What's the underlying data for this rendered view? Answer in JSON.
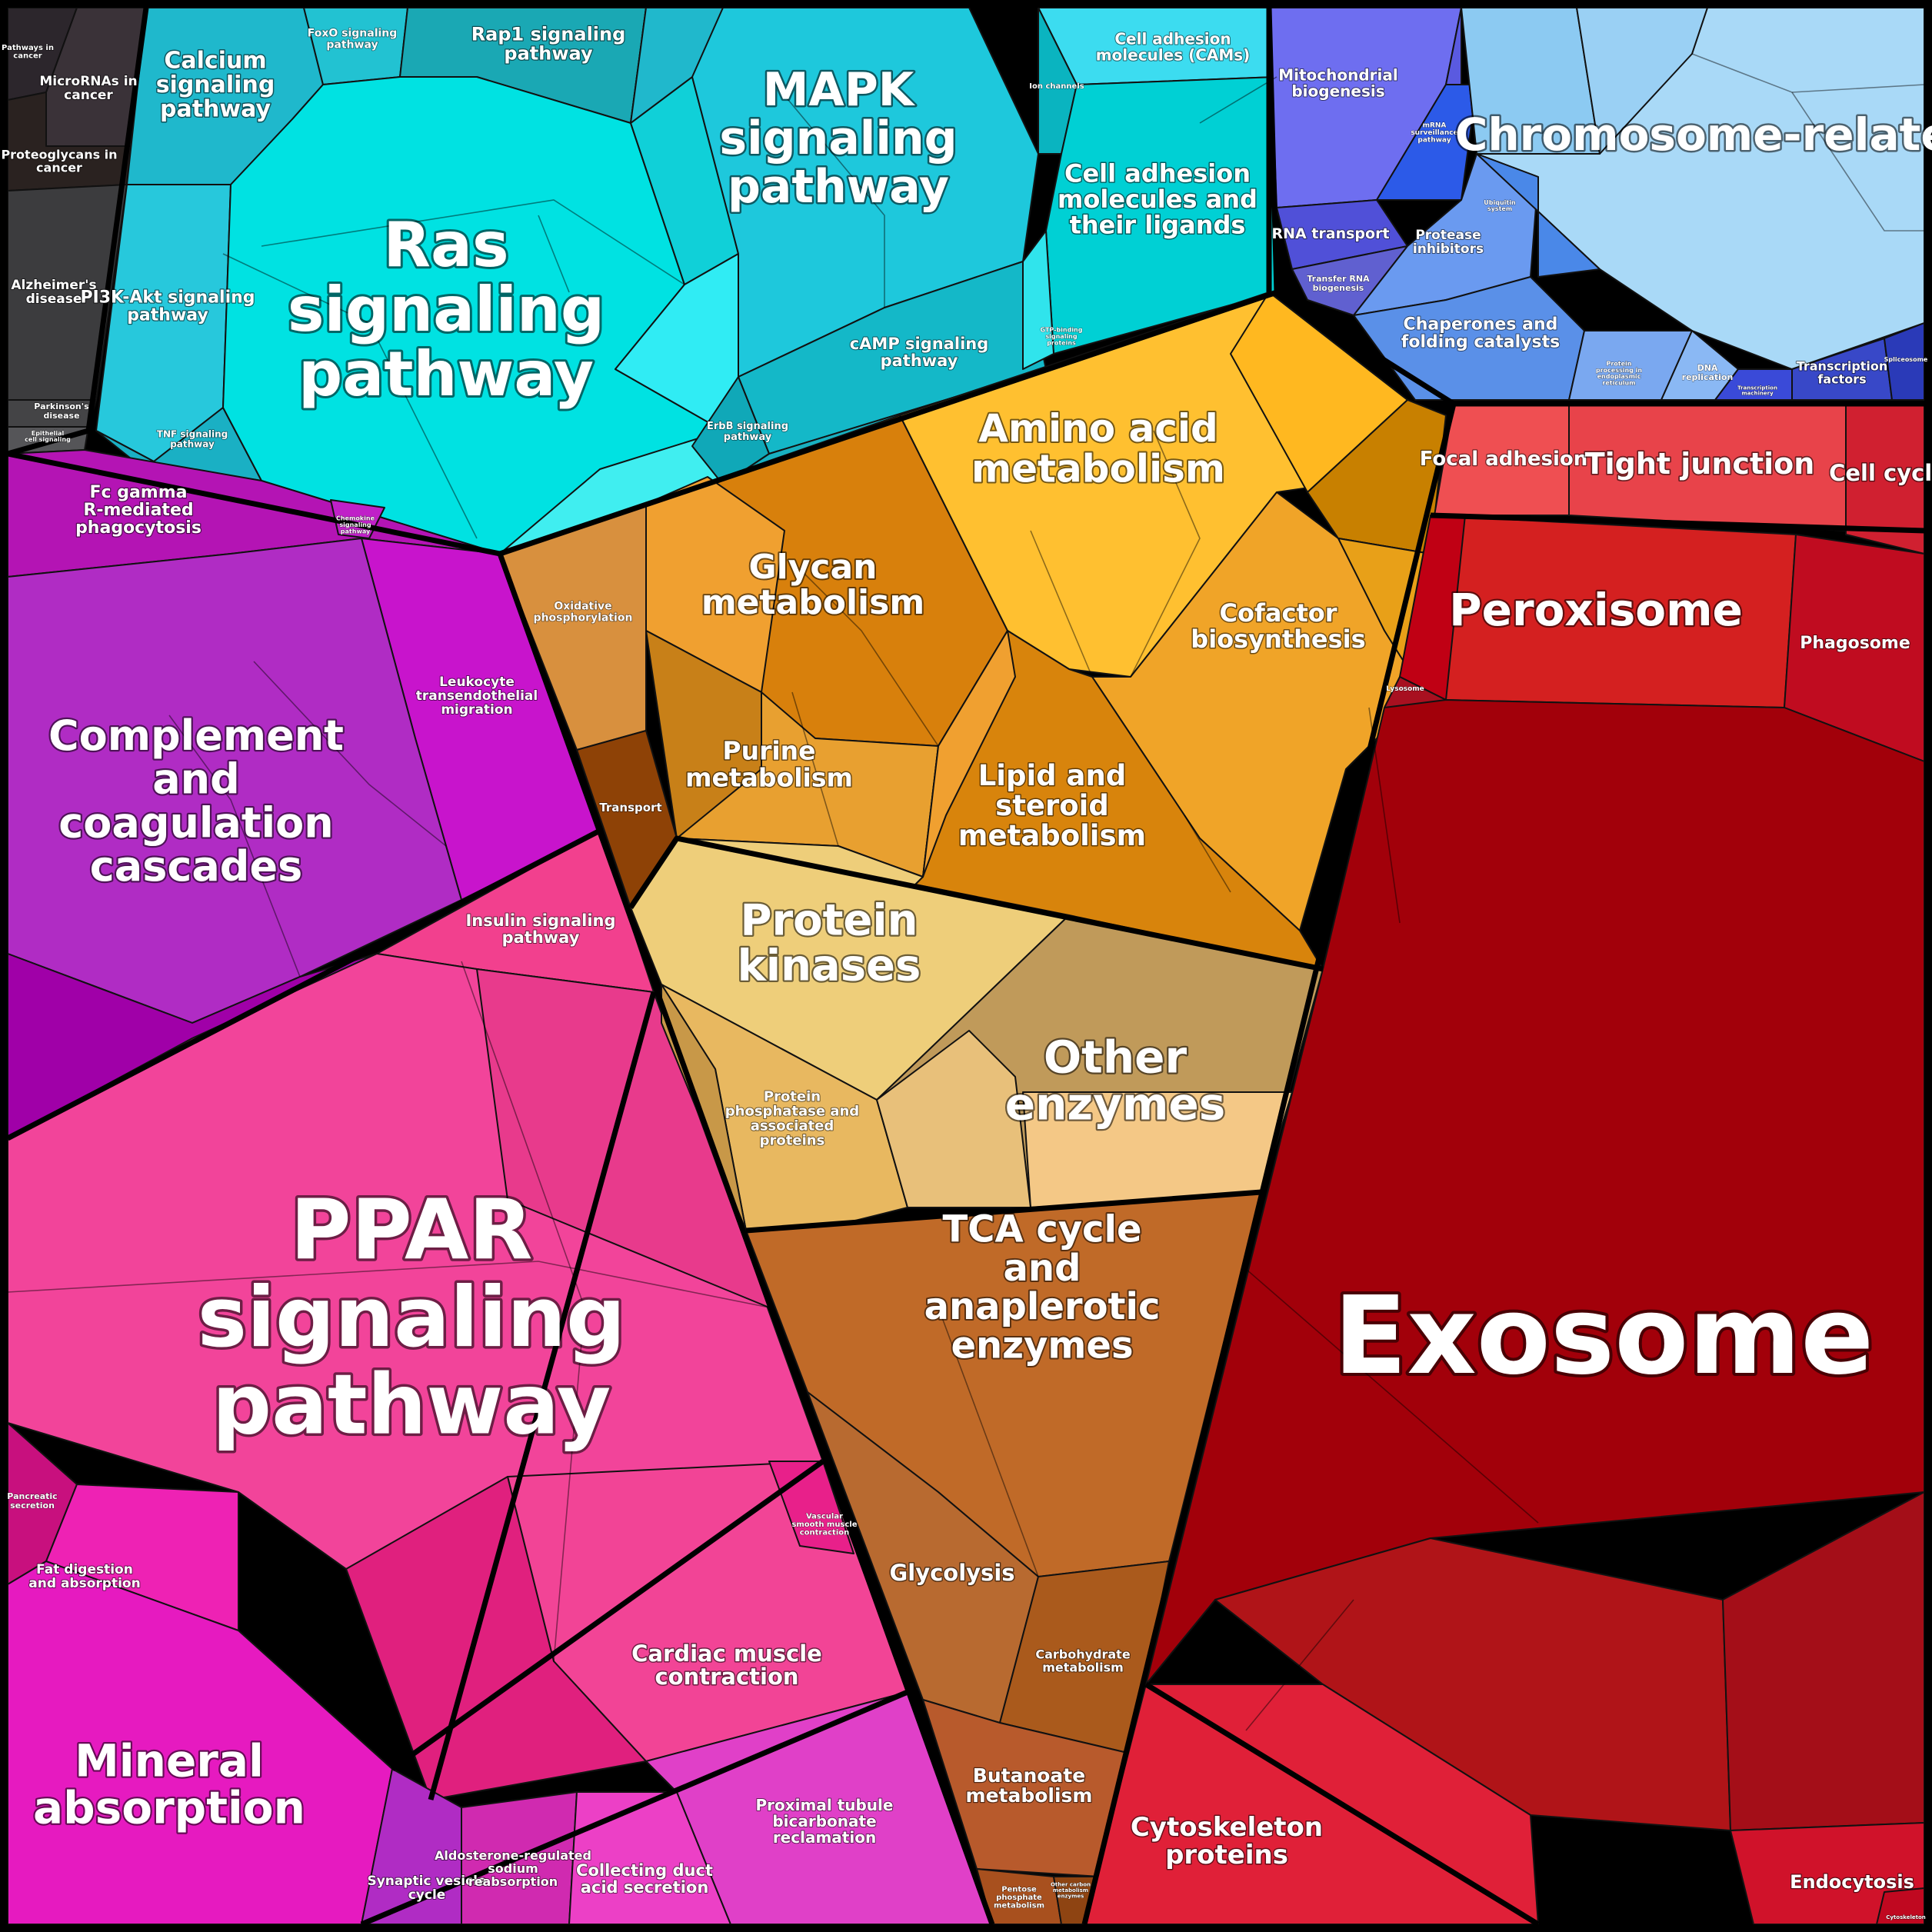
{
  "labels": {
    "pathways_in_cancer": "Pathways in cancer",
    "micrornas_in_cancer": "MicroRNAs in cancer",
    "proteoglycans_in_cancer": "Proteoglycans in cancer",
    "alzheimers_disease": "Alzheimer's disease",
    "parkinsons_disease": "Parkinson's disease",
    "epithelial_cell": "Epithelial cell signaling",
    "calcium_signaling": "Calcium signaling pathway",
    "foxo_signaling": "FoxO signaling pathway",
    "rap1_signaling": "Rap1 signaling pathway",
    "pi3k_akt_signaling": "PI3K-Akt signaling pathway",
    "ras_signaling": "Ras signaling pathway",
    "tnf_signaling": "TNF signaling pathway",
    "mapk_signaling": "MAPK signaling pathway",
    "camp_signaling": "cAMP signaling pathway",
    "erbb_signaling": "ErbB signaling pathway",
    "cell_adhesion_cams": "Cell adhesion molecules (CAMs)",
    "ion_channels": "Ion channels",
    "cell_adhesion_ligands": "Cell adhesion molecules and their ligands",
    "gtp_binding": "GTP-binding signaling proteins",
    "mitochondrial_biogenesis": "Mitochondrial biogenesis",
    "mrna_surveillance": "mRNA surveillance pathway",
    "rna_transport": "RNA transport",
    "transfer_rna_biogenesis": "Transfer RNA biogenesis",
    "chromosome_related": "Chromosome-related",
    "protease_inhibitors": "Protease inhibitors",
    "ubiquitin_system": "Ubiquitin system",
    "chaperones": "Chaperones and folding catalysts",
    "protein_processing_er": "Protein processing in endoplasmic reticulum",
    "dna_replication": "DNA replication",
    "transcription_machinery": "Transcription machinery",
    "transcription_factors": "Transcription factors",
    "spliceosome": "Spliceosome",
    "fc_gamma": "Fc gamma R-mediated phagocytosis",
    "chemokine_signaling": "Chemokine signaling pathway",
    "leukocyte_migration": "Leukocyte transendothelial migration",
    "complement": "Complement and coagulation cascades",
    "insulin_signaling": "Insulin signaling pathway",
    "ppar_signaling": "PPAR signaling pathway",
    "pancreatic_secretion": "Pancreatic secretion",
    "fat_digestion": "Fat digestion and absorption",
    "mineral_absorption": "Mineral absorption",
    "cardiac_muscle": "Cardiac muscle contraction",
    "vascular_smooth": "Vascular smooth muscle contraction",
    "synaptic_vesicle": "Synaptic vesicle cycle",
    "aldosterone": "Aldosterone-regulated sodium reabsorption",
    "collecting_duct": "Collecting duct acid secretion",
    "proximal_tubule": "Proximal tubule bicarbonate reclamation",
    "oxidative_phosphorylation": "Oxidative phosphorylation",
    "transport": "Transport",
    "amino_acid_metabolism": "Amino acid metabolism",
    "glycan_metabolism": "Glycan metabolism",
    "cofactor_biosynthesis": "Cofactor biosynthesis",
    "purine_metabolism": "Purine metabolism",
    "lipid_steroid": "Lipid and steroid metabolism",
    "protein_kinases": "Protein kinases",
    "other_enzymes": "Other enzymes",
    "protein_phosphatase": "Protein phosphatase and associated proteins",
    "tca_cycle": "TCA cycle and anaplerotic enzymes",
    "glycolysis": "Glycolysis",
    "carbohydrate_metabolism": "Carbohydrate metabolism",
    "butanoate_metabolism": "Butanoate metabolism",
    "pentose_phosphate": "Pentose phosphate metabolism",
    "other_carbon": "Other carbon metabolism enzymes",
    "focal_adhesion": "Focal adhesion",
    "tight_junction": "Tight junction",
    "cell_cycle": "Cell cycle",
    "peroxisome": "Peroxisome",
    "phagosome": "Phagosome",
    "lysosome": "Lysosome",
    "exosome": "Exosome",
    "cytoskeleton_proteins": "Cytoskeleton proteins",
    "endocytosis": "Endocytosis",
    "cytoskeleton_small": "Cytoskeleton"
  },
  "colors": {
    "cancer": "#332e33",
    "signaling": "#1ec8dc",
    "ras": "#00e2e2",
    "blue_genetic": "#7b8cf0",
    "chromosome": "#a9d9f7",
    "immune": "#b424c8",
    "ppar": "#ee3a8e",
    "metabolism": "#e89a26",
    "kinases": "#e8c878",
    "tca": "#c06a28",
    "red_cellular": "#d82828",
    "exosome": "#a0000a"
  }
}
